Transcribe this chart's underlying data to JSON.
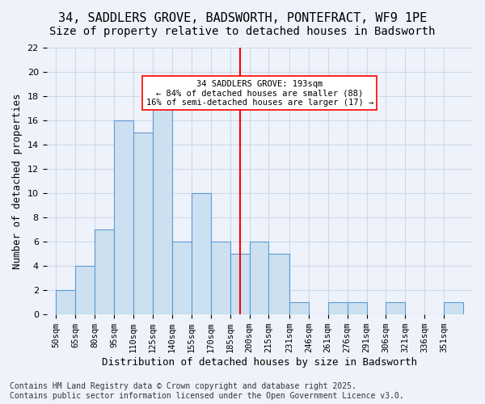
{
  "title_line1": "34, SADDLERS GROVE, BADSWORTH, PONTEFRACT, WF9 1PE",
  "title_line2": "Size of property relative to detached houses in Badsworth",
  "xlabel": "Distribution of detached houses by size in Badsworth",
  "ylabel": "Number of detached properties",
  "footer": "Contains HM Land Registry data © Crown copyright and database right 2025.\nContains public sector information licensed under the Open Government Licence v3.0.",
  "bin_labels": [
    "50sqm",
    "65sqm",
    "80sqm",
    "95sqm",
    "110sqm",
    "125sqm",
    "140sqm",
    "155sqm",
    "170sqm",
    "185sqm",
    "200sqm",
    "215sqm",
    "231sqm",
    "246sqm",
    "261sqm",
    "276sqm",
    "291sqm",
    "306sqm",
    "321sqm",
    "336sqm",
    "351sqm"
  ],
  "bar_values": [
    2,
    4,
    7,
    16,
    15,
    18,
    6,
    10,
    6,
    5,
    6,
    5,
    1,
    0,
    1,
    1,
    0,
    1,
    0,
    0,
    1
  ],
  "bin_edges": [
    50,
    65,
    80,
    95,
    110,
    125,
    140,
    155,
    170,
    185,
    200,
    215,
    231,
    246,
    261,
    276,
    291,
    306,
    321,
    336,
    351,
    366
  ],
  "bar_facecolor": "#cce0f0",
  "bar_edgecolor": "#5b9bd5",
  "grid_color": "#d0d8e8",
  "background_color": "#eef2fa",
  "vline_x": 193,
  "vline_color": "red",
  "annotation_text": "34 SADDLERS GROVE: 193sqm\n← 84% of detached houses are smaller (88)\n16% of semi-detached houses are larger (17) →",
  "annotation_box_color": "white",
  "annotation_box_edgecolor": "red",
  "ylim": [
    0,
    22
  ],
  "yticks": [
    0,
    2,
    4,
    6,
    8,
    10,
    12,
    14,
    16,
    18,
    20,
    22
  ],
  "title_fontsize": 11,
  "subtitle_fontsize": 10,
  "axis_label_fontsize": 9,
  "tick_fontsize": 8,
  "footer_fontsize": 7
}
